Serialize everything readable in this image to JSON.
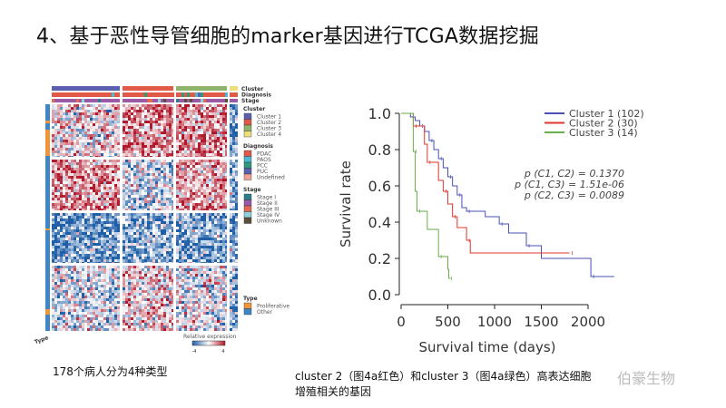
{
  "title": "4、基于恶性导管细胞的marker基因进行TCGA数据挖掘",
  "caption_left": "178个病人分为4种类型",
  "caption_right_line1": "cluster 2（图4a红色）和cluster 3（图4a绿色）高表达细胞",
  "caption_right_line2": "增殖相关的基因",
  "watermark": "伯豪生物",
  "chart_data": [
    {
      "type": "heatmap",
      "annotation_tracks": [
        "Cluster",
        "Diagnosis",
        "Stage"
      ],
      "row_annotation": "Type",
      "legends": [
        {
          "title": "Cluster",
          "entries": [
            {
              "label": "Cluster 1",
              "color": "#5b5fb0"
            },
            {
              "label": "Cluster 2",
              "color": "#e05a47"
            },
            {
              "label": "Cluster 3",
              "color": "#8db46a"
            },
            {
              "label": "Cluster 4",
              "color": "#ecdf7a"
            }
          ]
        },
        {
          "title": "Diagnosis",
          "entries": [
            {
              "label": "PDAC",
              "color": "#e05a47"
            },
            {
              "label": "PAOS",
              "color": "#4fb8d0"
            },
            {
              "label": "PCC",
              "color": "#2f9a7a"
            },
            {
              "label": "PUC",
              "color": "#5b5fb0"
            },
            {
              "label": "Undefined",
              "color": "#f0a090"
            }
          ]
        },
        {
          "title": "Stage",
          "entries": [
            {
              "label": "Stage I",
              "color": "#2a7e8a"
            },
            {
              "label": "Stage II",
              "color": "#9a5aa8"
            },
            {
              "label": "Stage III",
              "color": "#e26a50"
            },
            {
              "label": "Stage IV",
              "color": "#8fd0dc"
            },
            {
              "label": "Unknown",
              "color": "#5a5038"
            }
          ]
        },
        {
          "title": "Type",
          "entries": [
            {
              "label": "Proliferative",
              "color": "#f0953a"
            },
            {
              "label": "Other",
              "color": "#3f86c6"
            }
          ]
        }
      ],
      "colorbar": {
        "title": "Relative expression",
        "min": -4,
        "max": 4,
        "low_color": "#1f5fa8",
        "mid_color": "#ffffff",
        "high_color": "#b2182b"
      },
      "block_means": [
        [
          0.2,
          1.2,
          1.2,
          -1.6
        ],
        [
          1.1,
          -0.5,
          1.0,
          -1.4
        ],
        [
          -1.6,
          -1.3,
          -1.3,
          -1.2
        ],
        [
          -0.4,
          0.4,
          -0.2,
          -1.2
        ]
      ]
    },
    {
      "type": "line",
      "xlabel": "Survival time (days)",
      "ylabel": "Survival rate",
      "xlim": [
        0,
        2300
      ],
      "ylim": [
        0,
        1.0
      ],
      "xticks": [
        0,
        500,
        1000,
        1500,
        2000
      ],
      "yticks": [
        "0.0",
        "0.2",
        "0.4",
        "0.6",
        "0.8",
        "1.0"
      ],
      "legend_position": "top-right",
      "annotations": [
        "p (C1, C2) = 0.1370",
        "p (C1, C3) = 1.51e-06",
        "p (C2, C3) = 0.0089"
      ],
      "series": [
        {
          "name": "Cluster 1 (102)",
          "color": "#4a4fb5",
          "x": [
            0,
            100,
            150,
            200,
            250,
            300,
            350,
            400,
            450,
            500,
            550,
            600,
            650,
            700,
            900,
            1050,
            1150,
            1340,
            1500,
            2030,
            2280
          ],
          "y": [
            1,
            0.98,
            0.96,
            0.93,
            0.9,
            0.85,
            0.8,
            0.75,
            0.7,
            0.65,
            0.6,
            0.55,
            0.48,
            0.46,
            0.43,
            0.39,
            0.34,
            0.27,
            0.2,
            0.1,
            0.1
          ]
        },
        {
          "name": "Cluster 2 (30)",
          "color": "#e0342c",
          "x": [
            0,
            130,
            250,
            280,
            400,
            450,
            500,
            550,
            600,
            700,
            740,
            1800
          ],
          "y": [
            1,
            0.93,
            0.83,
            0.73,
            0.63,
            0.57,
            0.5,
            0.43,
            0.37,
            0.3,
            0.23,
            0.23
          ]
        },
        {
          "name": "Cluster 3 (14)",
          "color": "#6aae4a",
          "x": [
            0,
            130,
            150,
            170,
            280,
            400,
            500,
            510,
            530
          ],
          "y": [
            1,
            0.79,
            0.57,
            0.46,
            0.36,
            0.21,
            0.14,
            0.09,
            0.09
          ]
        }
      ]
    }
  ]
}
